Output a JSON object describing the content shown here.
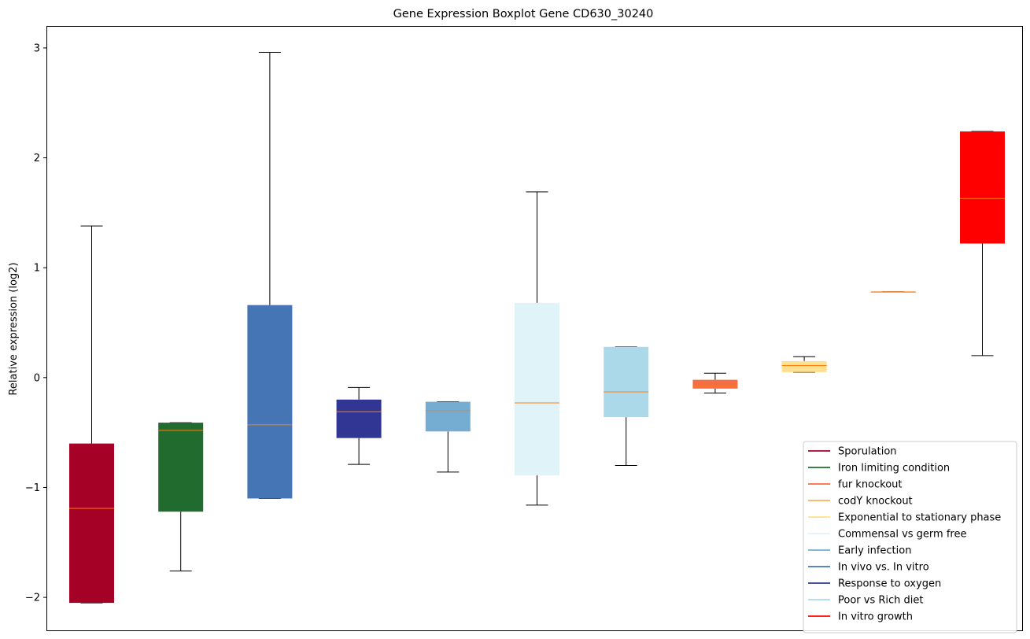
{
  "chart_data": {
    "type": "boxplot",
    "title": "Gene Expression Boxplot Gene CD630_30240",
    "xlabel": "",
    "ylabel": "Relative expression (log2)",
    "ylim": [
      -2.3,
      3.2
    ],
    "yticks": [
      -2,
      -1,
      0,
      1,
      2,
      3
    ],
    "ytick_labels": [
      "−2",
      "−1",
      "0",
      "1",
      "2",
      "3"
    ],
    "grid": false,
    "legend_position": "lower-right",
    "median_color": "#ff7f0e",
    "boxes": [
      {
        "q1": -2.05,
        "median": -1.19,
        "q3": -0.6,
        "whisker_low": -2.05,
        "whisker_high": 1.38,
        "color": "#a50026"
      },
      {
        "q1": -1.22,
        "median": -0.48,
        "q3": -0.41,
        "whisker_low": -1.76,
        "whisker_high": -0.41,
        "color": "#226b2e"
      },
      {
        "q1": -1.1,
        "median": -0.43,
        "q3": 0.66,
        "whisker_low": -1.1,
        "whisker_high": 2.96,
        "color": "#4575b4"
      },
      {
        "q1": -0.55,
        "median": -0.31,
        "q3": -0.2,
        "whisker_low": -0.79,
        "whisker_high": -0.09,
        "color": "#313695"
      },
      {
        "q1": -0.49,
        "median": -0.3,
        "q3": -0.22,
        "whisker_low": -0.86,
        "whisker_high": -0.22,
        "color": "#74add1"
      },
      {
        "q1": -0.89,
        "median": -0.23,
        "q3": 0.68,
        "whisker_low": -1.16,
        "whisker_high": 1.69,
        "color": "#e0f3f8"
      },
      {
        "q1": -0.36,
        "median": -0.13,
        "q3": 0.28,
        "whisker_low": -0.8,
        "whisker_high": 0.28,
        "color": "#abd9e9"
      },
      {
        "q1": -0.1,
        "median": -0.08,
        "q3": -0.02,
        "whisker_low": -0.14,
        "whisker_high": 0.04,
        "color": "#f46d43"
      },
      {
        "q1": 0.05,
        "median": 0.11,
        "q3": 0.15,
        "whisker_low": 0.05,
        "whisker_high": 0.19,
        "color": "#fee090"
      },
      {
        "q1": 0.78,
        "median": 0.78,
        "q3": 0.78,
        "whisker_low": 0.78,
        "whisker_high": 0.78,
        "color": "#fdae61"
      },
      {
        "q1": 1.22,
        "median": 1.63,
        "q3": 2.24,
        "whisker_low": 0.2,
        "whisker_high": 2.24,
        "color": "#ff0000"
      }
    ],
    "legend": [
      {
        "label": "Sporulation",
        "color": "#a50026"
      },
      {
        "label": "Iron limiting condition",
        "color": "#226b2e"
      },
      {
        "label": "fur knockout",
        "color": "#f46d43"
      },
      {
        "label": "codY knockout",
        "color": "#fdae61"
      },
      {
        "label": "Exponential to stationary phase",
        "color": "#fee090"
      },
      {
        "label": "Commensal vs germ free",
        "color": "#e0f3f8"
      },
      {
        "label": "Early infection",
        "color": "#74add1"
      },
      {
        "label": "In vivo vs. In vitro",
        "color": "#4575b4"
      },
      {
        "label": "Response to oxygen",
        "color": "#313695"
      },
      {
        "label": "Poor vs Rich diet",
        "color": "#abd9e9"
      },
      {
        "label": "In vitro growth",
        "color": "#ff0000"
      }
    ]
  }
}
